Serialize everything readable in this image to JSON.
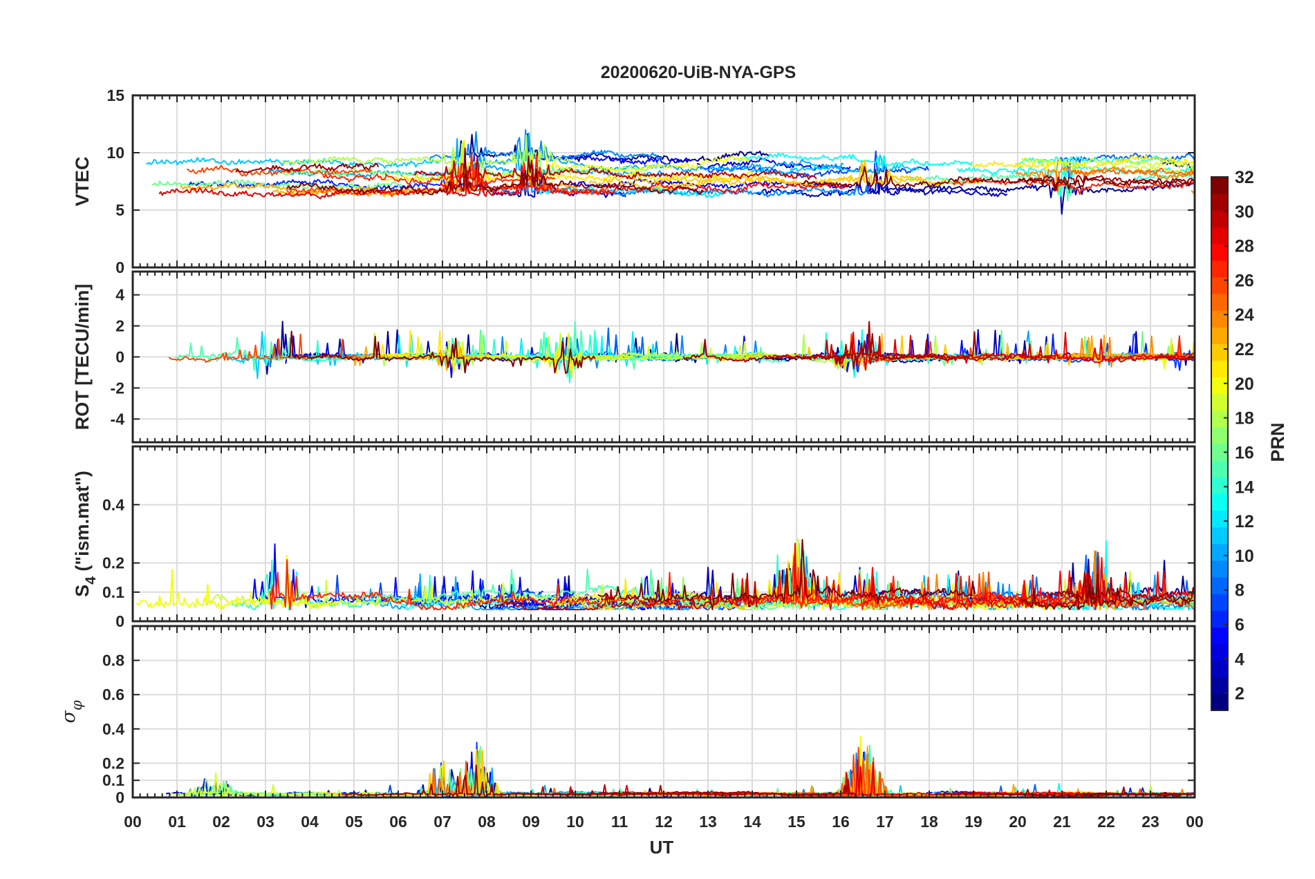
{
  "chart_data": {
    "type": "line",
    "title": "20200620-UiB-NYA-GPS",
    "xlabel": "UT",
    "x_ticks": [
      "00",
      "01",
      "02",
      "03",
      "04",
      "05",
      "06",
      "07",
      "08",
      "09",
      "10",
      "11",
      "12",
      "13",
      "14",
      "15",
      "16",
      "17",
      "18",
      "19",
      "20",
      "21",
      "22",
      "23",
      "00"
    ],
    "x_range_hours": [
      0,
      24
    ],
    "colorbar": {
      "label": "PRN",
      "range": [
        1,
        32
      ],
      "ticks": [
        "2",
        "4",
        "6",
        "8",
        "10",
        "12",
        "14",
        "16",
        "18",
        "20",
        "22",
        "24",
        "26",
        "28",
        "30",
        "32"
      ],
      "colormap": "jet"
    },
    "panels": [
      {
        "id": "vtec",
        "ylabel": "VTEC",
        "ylim": [
          0,
          15
        ],
        "yticks": [
          "0",
          "5",
          "10",
          "15"
        ],
        "ytick_values": [
          0,
          5,
          10,
          15
        ],
        "baseline": 8,
        "noise": 0.35,
        "drift": 1.6,
        "coverage": 0.45,
        "spike_prob": 0.0,
        "spike_amp": 0,
        "bursts": [
          {
            "t": 7.5,
            "amp": 3
          },
          {
            "t": 9.0,
            "amp": 2.5
          },
          {
            "t": 16.7,
            "amp": 2
          },
          {
            "t": 21.0,
            "amp": -2
          }
        ]
      },
      {
        "id": "rot",
        "ylabel": "ROT [TECU/min]",
        "ylim": [
          -5.5,
          5.5
        ],
        "yticks": [
          "-4",
          "-2",
          "0",
          "2",
          "4"
        ],
        "ytick_values": [
          -4,
          -2,
          0,
          2,
          4
        ],
        "baseline": 0,
        "noise": 0.18,
        "drift": 0,
        "coverage": 0.5,
        "spike_prob": 0.04,
        "spike_amp": 1.2,
        "bursts": [
          {
            "t": 7.3,
            "amp": 1.8
          },
          {
            "t": 9.8,
            "amp": 2.2
          },
          {
            "t": 16.3,
            "amp": 1.8
          },
          {
            "t": 3.0,
            "amp": 2.4
          }
        ]
      },
      {
        "id": "s4",
        "ylabel": "S4 (\"ism.mat\")",
        "ylabel_main": "S",
        "ylabel_sub": "4",
        "ylabel_rest": " (\"ism.mat\")",
        "ylim": [
          0,
          0.6
        ],
        "yticks": [
          "0",
          "0.1",
          "0.2",
          "0.4"
        ],
        "ytick_values": [
          0,
          0.1,
          0.2,
          0.4
        ],
        "baseline": 0.07,
        "noise": 0.018,
        "drift": 0.02,
        "coverage": 0.55,
        "spike_prob": 0.05,
        "spike_amp": 0.07,
        "bursts": [
          {
            "t": 3.4,
            "amp": 0.2
          },
          {
            "t": 15.0,
            "amp": 0.18
          },
          {
            "t": 21.8,
            "amp": 0.15
          },
          {
            "t": 1.2,
            "amp": 0.14
          }
        ]
      },
      {
        "id": "sigphi",
        "ylabel": "σφ",
        "ylabel_main": "σ",
        "ylabel_sub": "φ",
        "ylim": [
          0,
          1
        ],
        "yticks": [
          "0",
          "0.1",
          "0.2",
          "0.4",
          "0.6",
          "0.8"
        ],
        "ytick_values": [
          0,
          0.1,
          0.2,
          0.4,
          0.6,
          0.8
        ],
        "baseline": 0.02,
        "noise": 0.008,
        "drift": 0.0,
        "coverage": 0.6,
        "spike_prob": 0.01,
        "spike_amp": 0.04,
        "bursts": [
          {
            "t": 7.0,
            "amp": 0.18
          },
          {
            "t": 7.8,
            "amp": 0.25
          },
          {
            "t": 16.5,
            "amp": 0.3
          },
          {
            "t": 1.8,
            "amp": 0.12
          }
        ]
      }
    ],
    "series": "GPS satellites PRN 1–32 (32 traces per panel, colored by PRN)"
  }
}
